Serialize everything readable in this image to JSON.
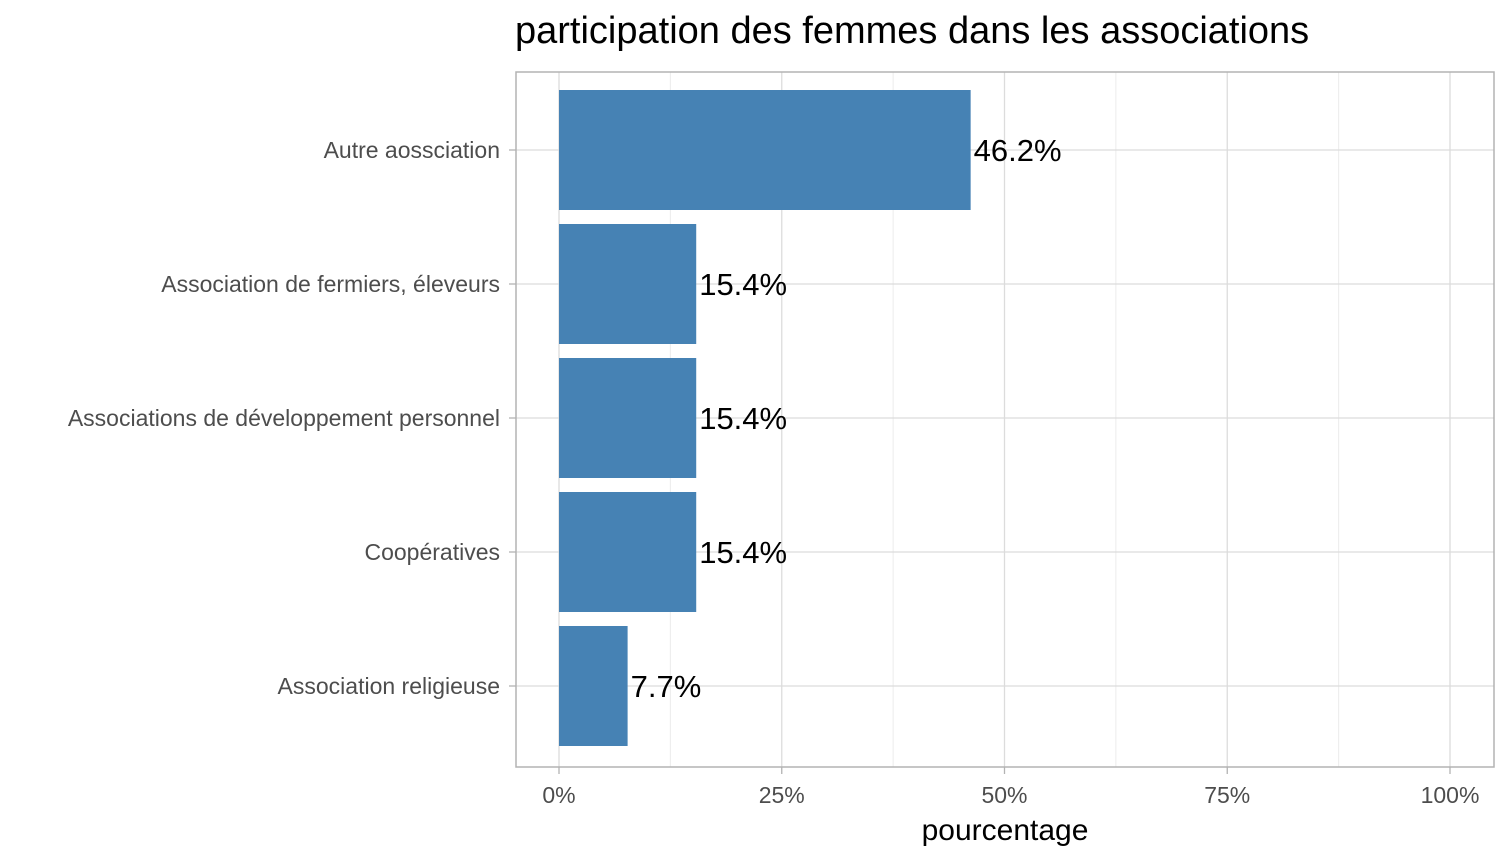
{
  "chart_data": {
    "type": "bar",
    "orientation": "horizontal",
    "title": "participation des femmes dans les associations",
    "xlabel": "pourcentage",
    "ylabel": "",
    "categories": [
      "Autre aossciation",
      "Association de fermiers, éleveurs",
      "Associations de développement personnel",
      "Coopératives",
      "Association religieuse"
    ],
    "values": [
      46.2,
      15.4,
      15.4,
      15.4,
      7.7
    ],
    "data_labels": [
      "46.2%",
      "15.4%",
      "15.4%",
      "15.4%",
      "7.7%"
    ],
    "xlim": [
      0,
      100
    ],
    "x_ticks": [
      0,
      25,
      50,
      75,
      100
    ],
    "x_tick_labels": [
      "0%",
      "25%",
      "50%",
      "75%",
      "100%"
    ],
    "grid": true,
    "legend": "none",
    "bar_color": "#4682B4"
  }
}
